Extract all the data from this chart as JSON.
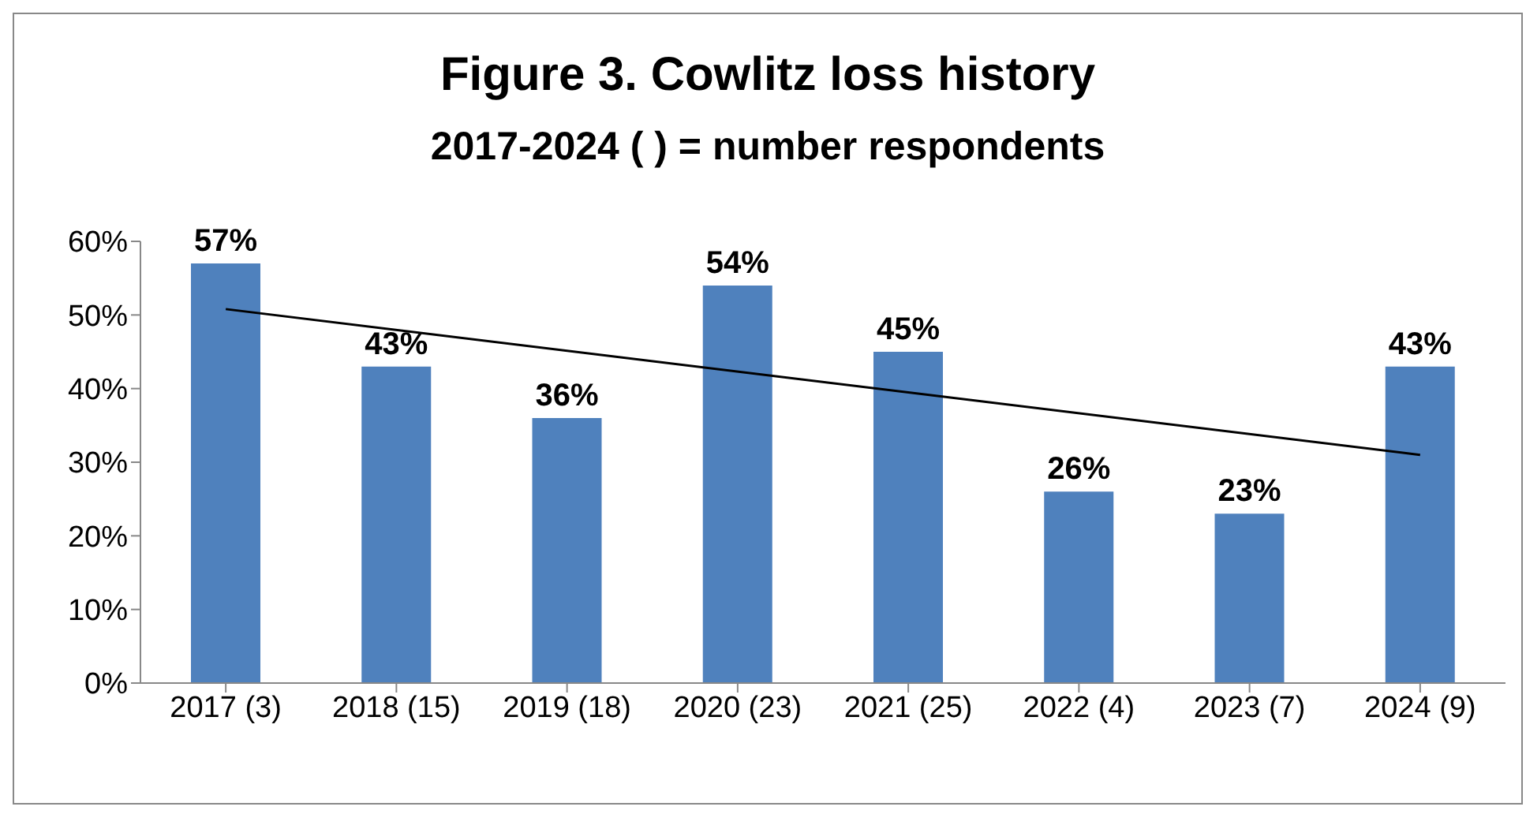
{
  "chart_data": {
    "type": "bar",
    "title": "Figure 3. Cowlitz loss history",
    "subtitle": "2017-2024 ( ) = number  respondents",
    "categories": [
      "2017 (3)",
      "2018 (15)",
      "2019 (18)",
      "2020 (23)",
      "2021 (25)",
      "2022 (4)",
      "2023 (7)",
      "2024 (9)"
    ],
    "series": [
      {
        "color": "#4f81bd",
        "values": [
          57,
          43,
          36,
          54,
          45,
          26,
          23,
          43
        ],
        "value_labels": [
          "57%",
          "43%",
          "36%",
          "54%",
          "45%",
          "26%",
          "23%",
          "43%"
        ]
      },
      {
        "type": "line",
        "color": "#000000",
        "values": [
          50.8,
          null,
          null,
          null,
          null,
          null,
          null,
          31.0
        ]
      }
    ],
    "ylim": [
      0,
      60
    ],
    "yticks": [
      {
        "value": 0,
        "label": "0%"
      },
      {
        "value": 10,
        "label": "10%"
      },
      {
        "value": 20,
        "label": "20%"
      },
      {
        "value": 30,
        "label": "30%"
      },
      {
        "value": 40,
        "label": "40%"
      },
      {
        "value": 50,
        "label": "50%"
      },
      {
        "value": 60,
        "label": "60%"
      }
    ],
    "grid": false,
    "legend": false,
    "marker": "none"
  }
}
